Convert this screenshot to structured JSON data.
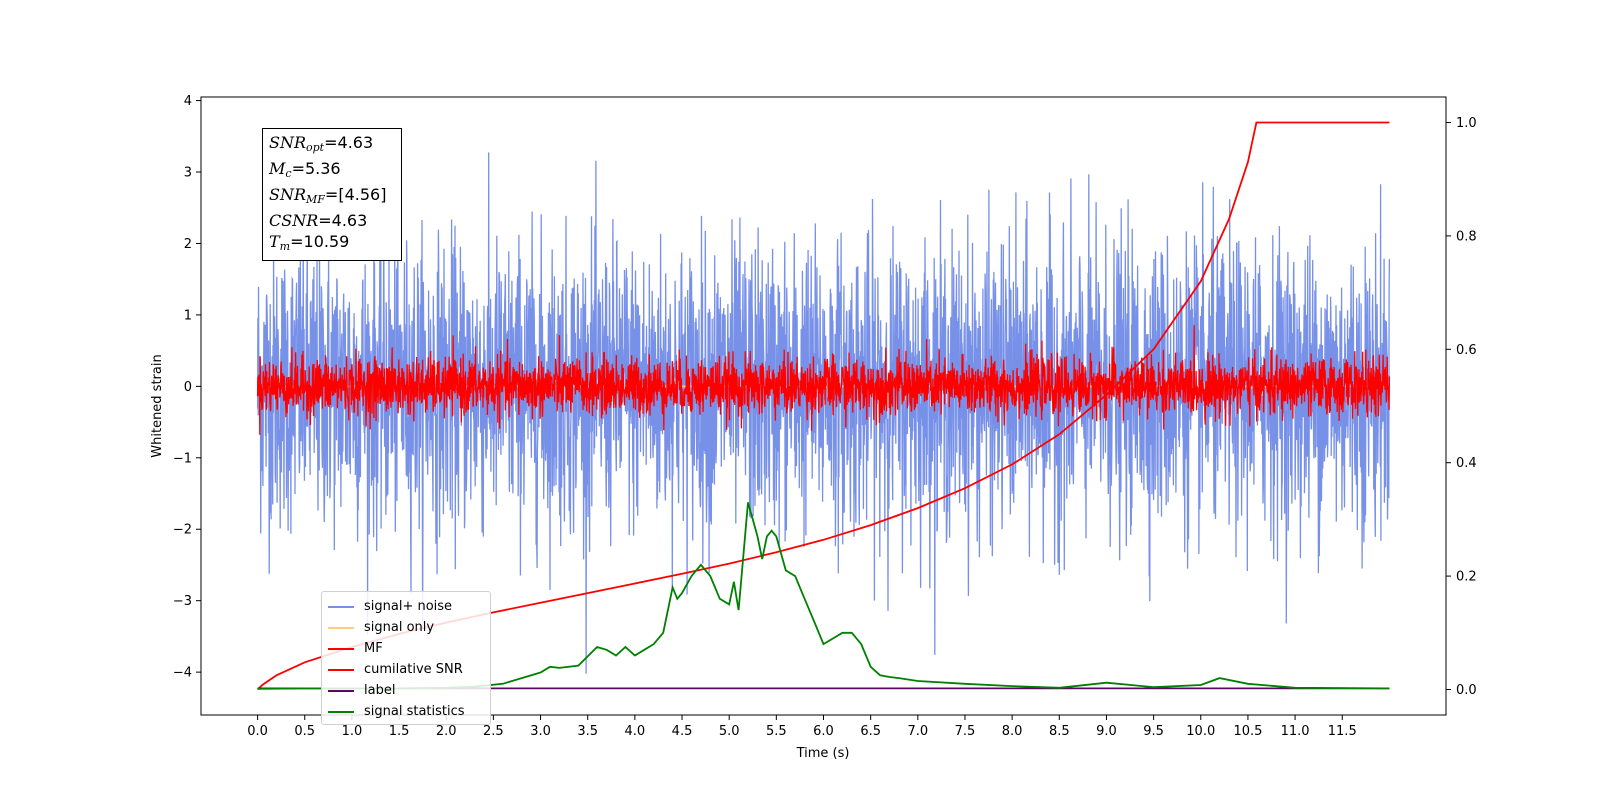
{
  "chart_data": {
    "type": "line",
    "xlabel": "Time (s)",
    "ylabel": "Whitened strain",
    "xlim": [
      -0.6,
      12.6
    ],
    "ylim": [
      -4.6,
      4.05
    ],
    "y2lim": [
      -0.045,
      1.045
    ],
    "x_ticks": [
      "0.0",
      "0.5",
      "1.0",
      "1.5",
      "2.0",
      "2.5",
      "3.0",
      "3.5",
      "4.0",
      "4.5",
      "5.0",
      "5.5",
      "6.0",
      "6.5",
      "7.0",
      "7.5",
      "8.0",
      "8.5",
      "9.0",
      "9.5",
      "10.0",
      "10.5",
      "11.0",
      "11.5"
    ],
    "y_ticks": [
      "4",
      "3",
      "2",
      "1",
      "0",
      "−1",
      "−2",
      "−3",
      "−4"
    ],
    "y2_ticks": [
      "1.0",
      "0.8",
      "0.6",
      "0.4",
      "0.2",
      "0.0"
    ],
    "legend_position": "lower-left",
    "series": [
      {
        "name": "signal+ noise",
        "color": "#7891e8",
        "axis": "left",
        "kind": "noise",
        "t_start": 0.0,
        "t_end": 12.0,
        "sigma": 1.0
      },
      {
        "name": "signal only",
        "color": "#ffcc80",
        "axis": "left",
        "kind": "flat",
        "value": 0.0
      },
      {
        "name": "MF",
        "color": "#ff0000",
        "axis": "left",
        "kind": "noise",
        "t_start": 0.0,
        "t_end": 12.0,
        "sigma": 0.2
      },
      {
        "name": "cumilative SNR",
        "color": "#ff0000",
        "axis": "right",
        "x": [
          0.0,
          0.05,
          0.2,
          0.5,
          1.0,
          1.5,
          2.0,
          2.5,
          3.0,
          3.5,
          4.0,
          4.5,
          5.0,
          5.5,
          6.0,
          6.5,
          7.0,
          7.5,
          8.0,
          8.5,
          9.0,
          9.5,
          10.0,
          10.3,
          10.5,
          10.59,
          12.0
        ],
        "values": [
          0.0,
          0.008,
          0.025,
          0.048,
          0.075,
          0.098,
          0.118,
          0.136,
          0.153,
          0.17,
          0.187,
          0.204,
          0.222,
          0.242,
          0.264,
          0.29,
          0.32,
          0.355,
          0.397,
          0.45,
          0.52,
          0.6,
          0.72,
          0.83,
          0.93,
          1.0,
          1.0
        ]
      },
      {
        "name": "label",
        "color": "#5b0a5b",
        "axis": "right",
        "x": [
          0.0,
          12.0
        ],
        "values": [
          0.002,
          0.002
        ]
      },
      {
        "name": "signal statistics",
        "color": "#008000",
        "axis": "right",
        "x": [
          0.0,
          0.5,
          1.0,
          1.5,
          2.0,
          2.3,
          2.6,
          2.8,
          3.0,
          3.1,
          3.2,
          3.4,
          3.6,
          3.7,
          3.8,
          3.9,
          4.0,
          4.1,
          4.2,
          4.3,
          4.4,
          4.45,
          4.5,
          4.6,
          4.7,
          4.8,
          4.9,
          5.0,
          5.05,
          5.1,
          5.2,
          5.25,
          5.3,
          5.35,
          5.4,
          5.45,
          5.5,
          5.6,
          5.7,
          5.8,
          5.9,
          6.0,
          6.1,
          6.2,
          6.3,
          6.4,
          6.5,
          6.6,
          6.7,
          6.8,
          7.0,
          7.5,
          8.0,
          8.5,
          9.0,
          9.5,
          10.0,
          10.2,
          10.5,
          11.0,
          12.0
        ],
        "values": [
          0.001,
          0.002,
          0.002,
          0.002,
          0.003,
          0.005,
          0.01,
          0.02,
          0.03,
          0.04,
          0.038,
          0.042,
          0.075,
          0.07,
          0.06,
          0.075,
          0.06,
          0.07,
          0.08,
          0.1,
          0.18,
          0.16,
          0.17,
          0.2,
          0.22,
          0.2,
          0.16,
          0.15,
          0.19,
          0.14,
          0.33,
          0.3,
          0.27,
          0.23,
          0.27,
          0.28,
          0.27,
          0.21,
          0.2,
          0.16,
          0.12,
          0.08,
          0.09,
          0.1,
          0.1,
          0.08,
          0.04,
          0.025,
          0.022,
          0.02,
          0.015,
          0.01,
          0.006,
          0.003,
          0.012,
          0.004,
          0.008,
          0.02,
          0.01,
          0.003,
          0.002
        ]
      }
    ],
    "annotation": {
      "lines": [
        {
          "base": "SNR",
          "sub": "opt",
          "text": "=4.63"
        },
        {
          "base": "M",
          "sub": "c",
          "text": "=5.36"
        },
        {
          "base": "SNR",
          "sub": "MF",
          "text": "=[4.56]"
        },
        {
          "base": "CSNR",
          "sub": "",
          "text": "=4.63"
        },
        {
          "base": "T",
          "sub": "m",
          "text": "=10.59"
        }
      ]
    }
  }
}
